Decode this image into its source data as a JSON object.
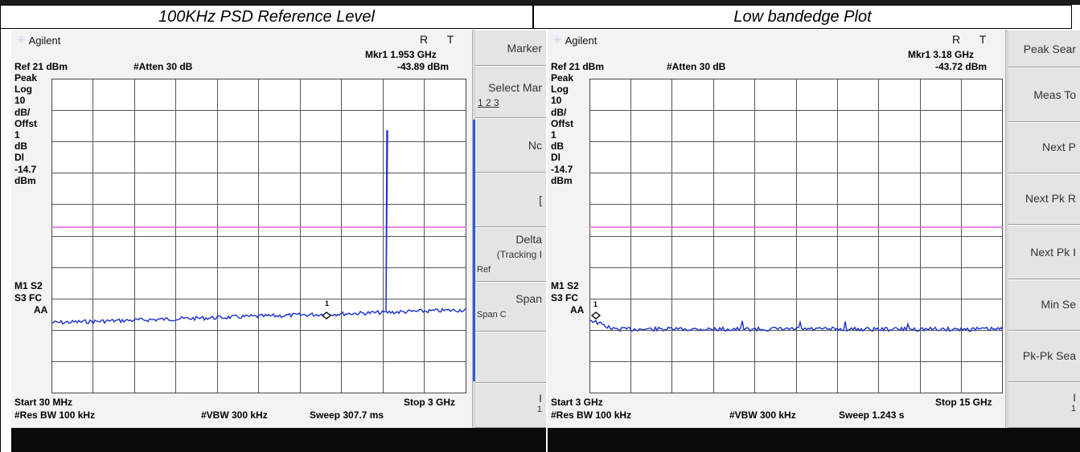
{
  "headers": {
    "left_title": "100KHz PSD Reference Level",
    "right_title": "Low bandedge Plot"
  },
  "left": {
    "brand": "Agilent",
    "status": "R T",
    "marker_readout": "Mkr1  1.953 GHz",
    "marker_value": "-43.89 dBm",
    "ref": "Ref 21 dBm",
    "atten": "#Atten 30 dB",
    "scale_labels": [
      "Peak",
      "Log",
      "10",
      "dB/",
      "Offst",
      "1",
      "dB",
      "Dl",
      "-14.7",
      "dBm"
    ],
    "m1": "M1  S2",
    "s3": "S3  FC",
    "aa": "AA",
    "start": "Start 30 MHz",
    "stop": "Stop 3 GHz",
    "res_bw": "#Res BW 100 kHz",
    "vbw": "#VBW 300 kHz",
    "sweep": "Sweep 307.7 ms",
    "marker_num": "1",
    "softkeys": {
      "k1": "Marker",
      "k2": "Select Mar",
      "k2_sub": "1    2    3",
      "k3": "Nc",
      "k4": "[",
      "k5": "Delta",
      "k5_sub": "(Tracking I",
      "k5_ref": "Ref",
      "k6": "Span",
      "k6_sub": "Span      C",
      "k7": "",
      "k8": "I",
      "k8_sub": "1"
    }
  },
  "right": {
    "brand": "Agilent",
    "status": "R T",
    "marker_readout": "Mkr1  3.18 GHz",
    "marker_value": "-43.72 dBm",
    "ref": "Ref 21 dBm",
    "atten": "#Atten 30 dB",
    "scale_labels": [
      "Peak",
      "Log",
      "10",
      "dB/",
      "Offst",
      "1",
      "dB",
      "Dl",
      "-14.7",
      "dBm"
    ],
    "m1": "M1  S2",
    "s3": "S3  FC",
    "aa": "AA",
    "start": "Start 3 GHz",
    "stop": "Stop 15 GHz",
    "res_bw": "#Res BW 100 kHz",
    "vbw": "#VBW 300 kHz",
    "sweep": "Sweep 1.243 s",
    "marker_num": "1",
    "softkeys": {
      "k1": "Peak Sear",
      "k2": "Meas To",
      "k3": "Next P",
      "k4": "Next Pk R",
      "k5": "Next Pk I",
      "k6": "Min Se",
      "k7": "Pk-Pk Sea",
      "k8": "I",
      "k8_sub": "1"
    }
  },
  "colors": {
    "trace": "#1a2fd0",
    "display_line": "#e060e0",
    "grid": "#555555"
  },
  "traces": {
    "left_display_line_dbm": -14.7,
    "left_marker": {
      "freq_ghz": 1.953,
      "level_dbm": -43.89
    },
    "right_marker": {
      "freq_ghz": 3.18,
      "level_dbm": -43.72
    }
  }
}
